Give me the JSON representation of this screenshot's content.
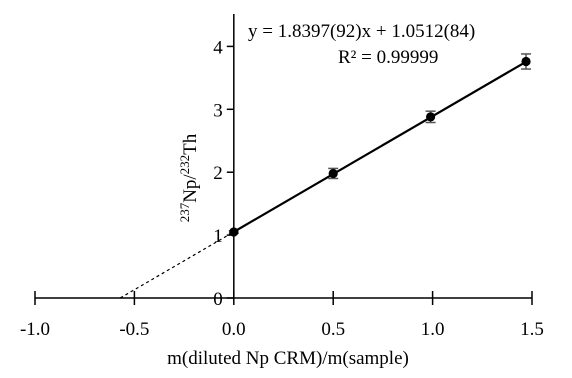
{
  "chart_data": {
    "type": "scatter",
    "xlabel": "m(diluted Np CRM)/m(sample)",
    "ylabel": {
      "sup1": "237",
      "main1": "Np/",
      "sup2": "232",
      "main2": "Th"
    },
    "xlim": [
      -1.0,
      1.5
    ],
    "ylim": [
      0,
      4.5
    ],
    "xticks": [
      -1.0,
      -0.5,
      0.0,
      0.5,
      1.0,
      1.5
    ],
    "xtick_labels": [
      "-1.0",
      "-0.5",
      "0.0",
      "0.5",
      "1.0",
      "1.5"
    ],
    "yticks": [
      0,
      1,
      2,
      3,
      4
    ],
    "ytick_labels": [
      "0",
      "1",
      "2",
      "3",
      "4"
    ],
    "grid": false,
    "series": [
      {
        "points": [
          {
            "x": 0.0,
            "y": 1.05,
            "err": 0.02
          },
          {
            "x": 0.5,
            "y": 1.98,
            "err": 0.08
          },
          {
            "x": 0.99,
            "y": 2.88,
            "err": 0.09
          },
          {
            "x": 1.47,
            "y": 3.76,
            "err": 0.12
          }
        ]
      }
    ],
    "fit": {
      "slope": 1.8397,
      "intercept": 1.0512,
      "solid_from": 0.0,
      "solid_to": 1.47,
      "dashed_from": -0.571,
      "dashed_to": 0.0
    },
    "annotations": {
      "equation": "y = 1.8397(92)x + 1.0512(84)",
      "r2": "R² = 0.99999"
    }
  }
}
